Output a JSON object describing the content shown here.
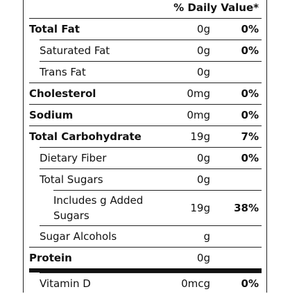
{
  "header": {
    "daily_value": "% Daily Value*"
  },
  "rows": [
    {
      "name": "Total Fat",
      "amount": "0g",
      "dv": "0%",
      "bold": true,
      "level": 0
    },
    {
      "name": "Saturated Fat",
      "amount": "0g",
      "dv": "0%",
      "bold": false,
      "level": 1
    },
    {
      "name": "Trans Fat",
      "amount": "0g",
      "bold": false,
      "level": 1
    },
    {
      "name": "Cholesterol",
      "amount": "0mg",
      "dv": "0%",
      "bold": true,
      "level": 0
    },
    {
      "name": "Sodium",
      "amount": "0mg",
      "dv": "0%",
      "bold": true,
      "level": 0
    },
    {
      "name": "Total Carbohydrate",
      "amount": "19g",
      "dv": "7%",
      "bold": true,
      "level": 0
    },
    {
      "name": "Dietary Fiber",
      "amount": "0g",
      "dv": "0%",
      "bold": false,
      "level": 1
    },
    {
      "name": "Total Sugars",
      "amount": "0g",
      "bold": false,
      "level": 1
    },
    {
      "name": "Includes g Added Sugars",
      "amount": "19g",
      "dv": "38%",
      "bold": false,
      "level": 2
    },
    {
      "name": "Sugar Alcohols",
      "amount": "g",
      "bold": false,
      "level": 1
    },
    {
      "name": "Protein",
      "amount": "0g",
      "bold": true,
      "level": 0,
      "thick_rule_after": true
    },
    {
      "name": "Vitamin D",
      "amount": "0mcg",
      "dv": "0%",
      "bold": false,
      "level": 1
    }
  ]
}
